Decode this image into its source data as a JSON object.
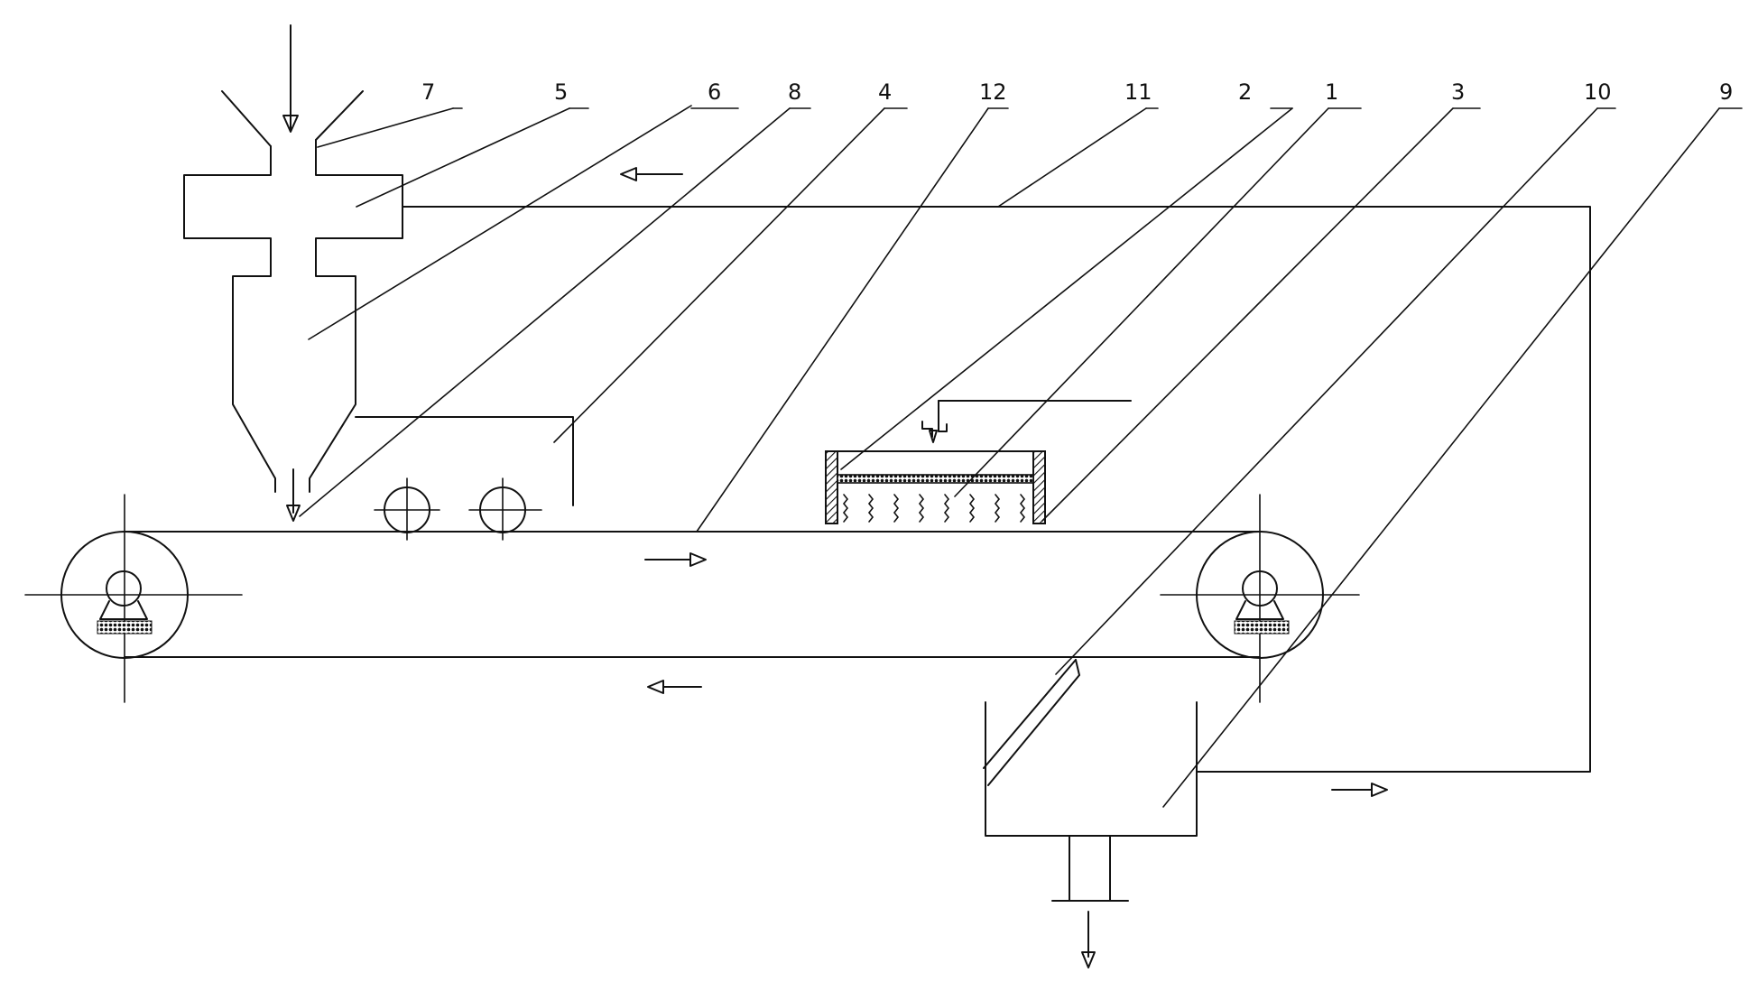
{
  "labels": {
    "l1": "1",
    "l2": "2",
    "l3": "3",
    "l4": "4",
    "l5": "5",
    "l6": "6",
    "l7": "7",
    "l8": "8",
    "l9": "9",
    "l10": "10",
    "l11": "11",
    "l12": "12"
  }
}
